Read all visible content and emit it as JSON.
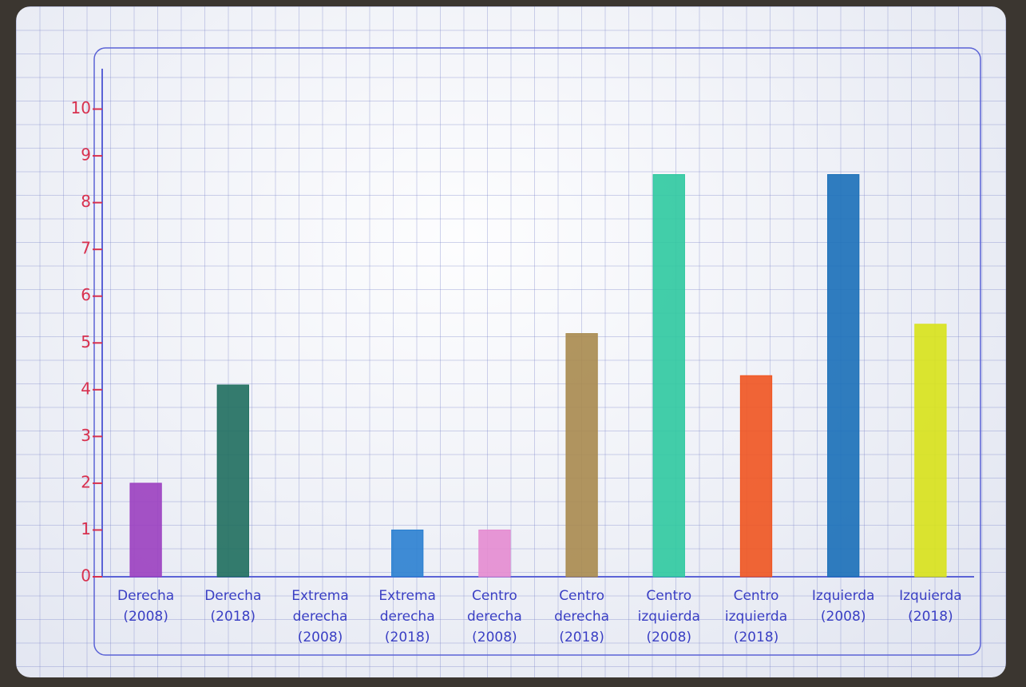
{
  "chart_data": {
    "type": "bar",
    "categories": [
      "Derecha (2008)",
      "Derecha (2018)",
      "Extrema derecha (2008)",
      "Extrema derecha (2018)",
      "Centro derecha (2008)",
      "Centro derecha (2018)",
      "Centro izquierda (2008)",
      "Centro izquierda (2018)",
      "Izquierda (2008)",
      "Izquierda (2018)"
    ],
    "values": [
      2,
      4.1,
      0,
      1,
      1,
      5.2,
      8.6,
      4.3,
      8.6,
      5.4
    ],
    "colors": [
      "#9b3fc0",
      "#1f6e5e",
      "#2a7fd0",
      "#2a7fd0",
      "#e48bd0",
      "#a88a4e",
      "#2fc9a0",
      "#ef5420",
      "#1a6fb8",
      "#d8e21a"
    ],
    "ylim": [
      0,
      11
    ],
    "yticks": [
      0,
      1,
      2,
      3,
      4,
      5,
      6,
      7,
      8,
      9,
      10
    ]
  }
}
